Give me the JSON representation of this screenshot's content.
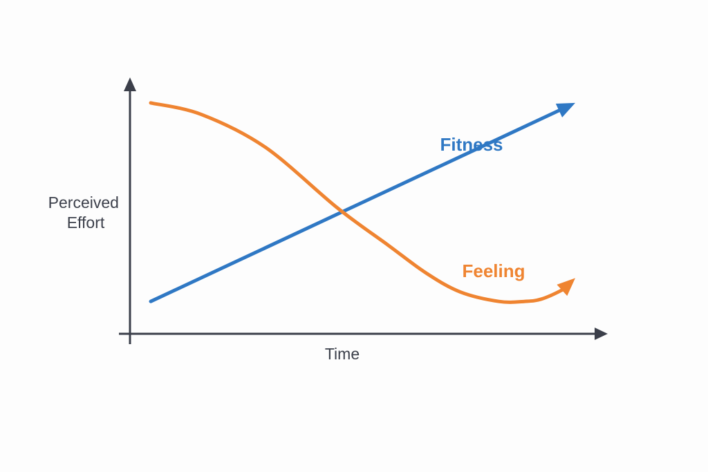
{
  "chart_data": {
    "type": "line",
    "ylabel": [
      "Perceived",
      "Effort"
    ],
    "xlabel": "Time",
    "series": [
      {
        "name": "Fitness",
        "color": "#2f78c4",
        "x": [
          0,
          1
        ],
        "y": [
          0.1,
          0.95
        ]
      },
      {
        "name": "Feeling",
        "color": "#ef8431",
        "x": [
          0,
          0.12,
          0.27,
          0.44,
          0.56,
          0.65,
          0.73,
          0.82,
          0.88,
          0.92,
          0.97,
          1.0
        ],
        "y": [
          0.95,
          0.9,
          0.76,
          0.5,
          0.34,
          0.22,
          0.14,
          0.1,
          0.1,
          0.11,
          0.15,
          0.2
        ]
      }
    ],
    "colors": {
      "axis": "#3b3f4a",
      "fitness": "#2f78c4",
      "feeling": "#ef8431"
    }
  }
}
